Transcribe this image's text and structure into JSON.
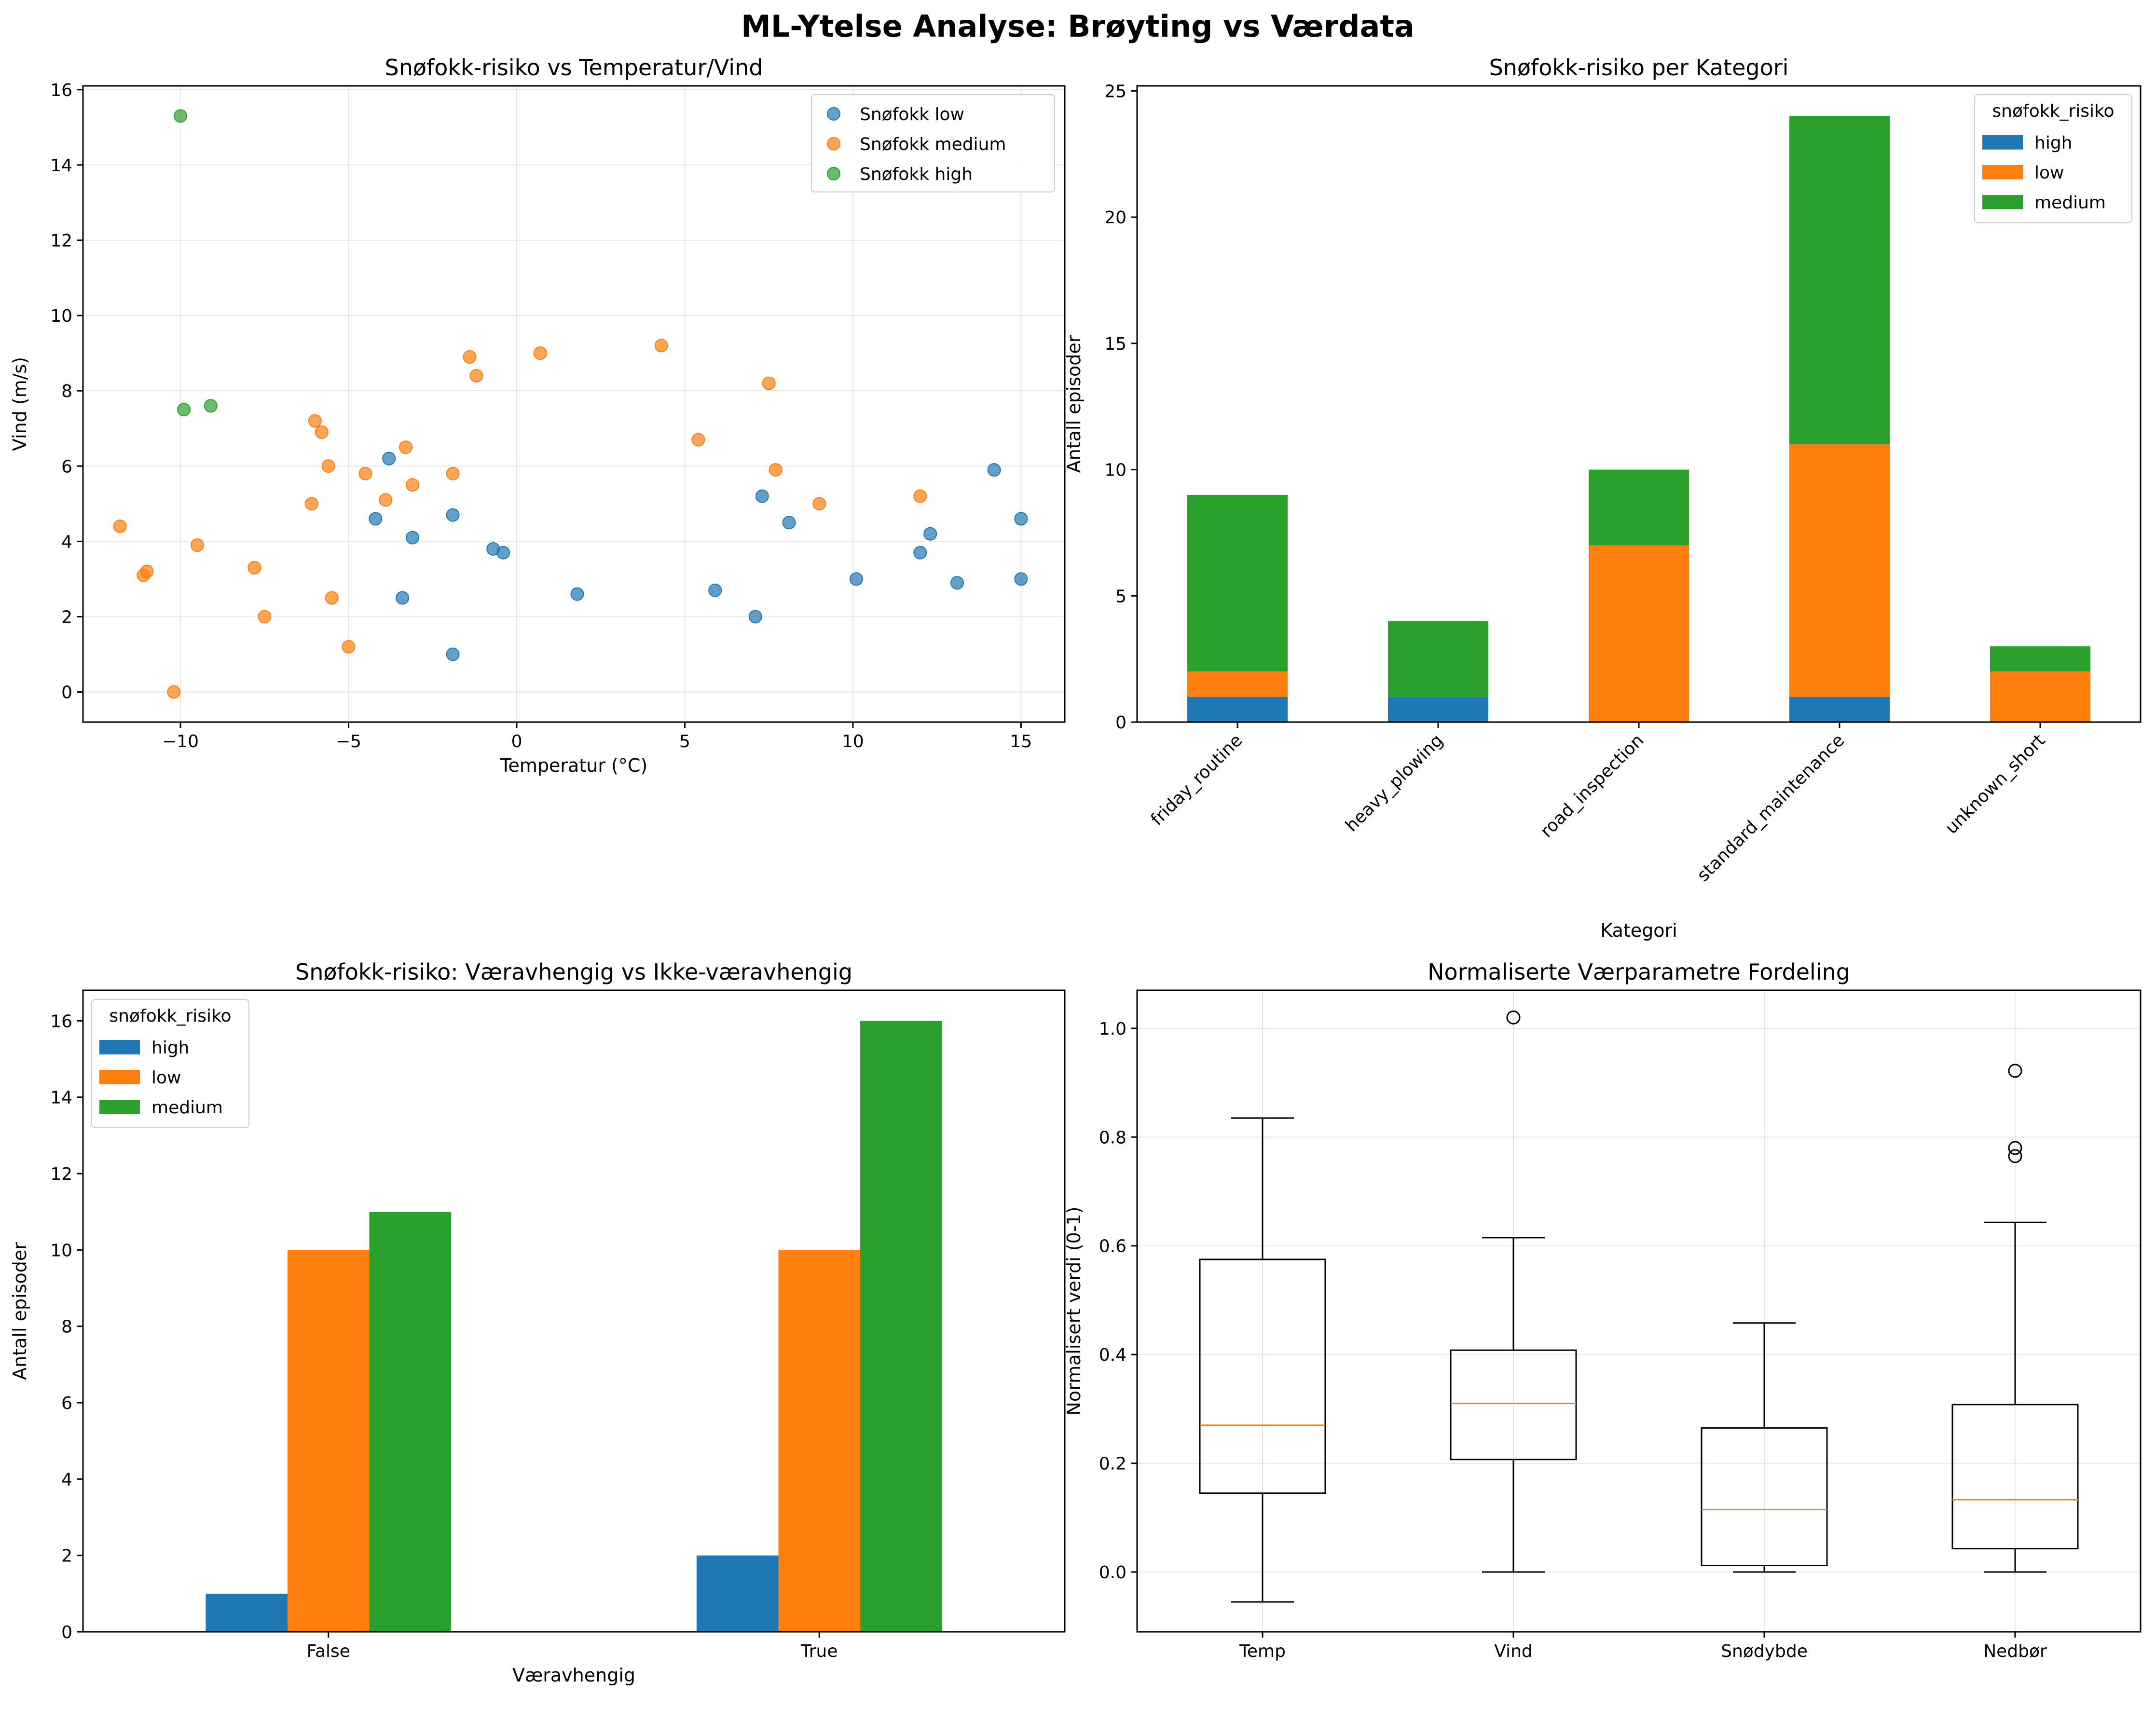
{
  "suptitle": "ML-Ytelse Analyse: Brøyting vs Værdata",
  "colors": {
    "blue": "#1f77b4",
    "orange": "#ff7f0e",
    "green": "#2ca02c"
  },
  "chart_data": [
    {
      "type": "scatter",
      "title": "Snøfokk-risiko vs Temperatur/Vind",
      "xlabel": "Temperatur (°C)",
      "ylabel": "Vind (m/s)",
      "xlim": [
        -12.9,
        16.3
      ],
      "ylim": [
        -0.8,
        16.1
      ],
      "xticks": [
        -10,
        -5,
        0,
        5,
        10,
        15
      ],
      "yticks": [
        0,
        2,
        4,
        6,
        8,
        10,
        12,
        14,
        16
      ],
      "grid": true,
      "legend_position": "top-right",
      "series": [
        {
          "name": "Snøfokk low",
          "color": "#1f77b4",
          "points": [
            [
              -4.2,
              4.6
            ],
            [
              -3.8,
              6.2
            ],
            [
              -3.4,
              2.5
            ],
            [
              -3.1,
              4.1
            ],
            [
              -1.9,
              4.7
            ],
            [
              -1.9,
              1.0
            ],
            [
              -0.7,
              3.8
            ],
            [
              -0.4,
              3.7
            ],
            [
              1.8,
              2.6
            ],
            [
              5.9,
              2.7
            ],
            [
              7.1,
              2.0
            ],
            [
              7.3,
              5.2
            ],
            [
              8.1,
              4.5
            ],
            [
              10.1,
              3.0
            ],
            [
              12.0,
              3.7
            ],
            [
              12.3,
              4.2
            ],
            [
              13.1,
              2.9
            ],
            [
              14.2,
              5.9
            ],
            [
              15.0,
              4.6
            ],
            [
              15.0,
              3.0
            ]
          ]
        },
        {
          "name": "Snøfokk medium",
          "color": "#ff7f0e",
          "points": [
            [
              -11.8,
              4.4
            ],
            [
              -11.1,
              3.1
            ],
            [
              -11.0,
              3.2
            ],
            [
              -10.2,
              0.0
            ],
            [
              -9.5,
              3.9
            ],
            [
              -7.8,
              3.3
            ],
            [
              -7.5,
              2.0
            ],
            [
              -6.1,
              5.0
            ],
            [
              -6.0,
              7.2
            ],
            [
              -5.8,
              6.9
            ],
            [
              -5.6,
              6.0
            ],
            [
              -5.5,
              2.5
            ],
            [
              -5.0,
              1.2
            ],
            [
              -4.5,
              5.8
            ],
            [
              -3.9,
              5.1
            ],
            [
              -3.3,
              6.5
            ],
            [
              -3.1,
              5.5
            ],
            [
              -1.9,
              5.8
            ],
            [
              -1.4,
              8.9
            ],
            [
              -1.2,
              8.4
            ],
            [
              0.7,
              9.0
            ],
            [
              4.3,
              9.2
            ],
            [
              5.4,
              6.7
            ],
            [
              7.5,
              8.2
            ],
            [
              7.7,
              5.9
            ],
            [
              9.0,
              5.0
            ],
            [
              12.0,
              5.2
            ]
          ]
        },
        {
          "name": "Snøfokk high",
          "color": "#2ca02c",
          "points": [
            [
              -10.0,
              15.3
            ],
            [
              -9.9,
              7.5
            ],
            [
              -9.1,
              7.6
            ]
          ]
        }
      ]
    },
    {
      "type": "bar",
      "stacked": true,
      "title": "Snøfokk-risiko per Kategori",
      "xlabel": "Kategori",
      "ylabel": "Antall episoder",
      "ylim": [
        0,
        25.2
      ],
      "yticks": [
        0,
        5,
        10,
        15,
        20,
        25
      ],
      "legend_title": "snøfokk_risiko",
      "legend_position": "top-right",
      "categories": [
        "friday_routine",
        "heavy_plowing",
        "road_inspection",
        "standard_maintenance",
        "unknown_short"
      ],
      "series": [
        {
          "name": "high",
          "color": "#1f77b4",
          "values": [
            1,
            1,
            0,
            1,
            0
          ]
        },
        {
          "name": "low",
          "color": "#ff7f0e",
          "values": [
            1,
            0,
            7,
            10,
            2
          ]
        },
        {
          "name": "medium",
          "color": "#2ca02c",
          "values": [
            7,
            3,
            3,
            13,
            1
          ]
        }
      ]
    },
    {
      "type": "bar",
      "stacked": false,
      "title": "Snøfokk-risiko: Væravhengig vs Ikke-væravhengig",
      "xlabel": "Væravhengig",
      "ylabel": "Antall episoder",
      "ylim": [
        0,
        16.8
      ],
      "yticks": [
        0,
        2,
        4,
        6,
        8,
        10,
        12,
        14,
        16
      ],
      "legend_title": "snøfokk_risiko",
      "legend_position": "top-left",
      "categories": [
        "False",
        "True"
      ],
      "series": [
        {
          "name": "high",
          "color": "#1f77b4",
          "values": [
            1,
            2
          ]
        },
        {
          "name": "low",
          "color": "#ff7f0e",
          "values": [
            10,
            10
          ]
        },
        {
          "name": "medium",
          "color": "#2ca02c",
          "values": [
            11,
            16
          ]
        }
      ]
    },
    {
      "type": "box",
      "title": "Normaliserte Værparametre Fordeling",
      "xlabel": "",
      "ylabel": "Normalisert verdi (0-1)",
      "ylim": [
        -0.11,
        1.07
      ],
      "yticks": [
        "0.0",
        "0.2",
        "0.4",
        "0.6",
        "0.8",
        "1.0"
      ],
      "grid": true,
      "categories": [
        "Temp",
        "Vind",
        "Snødybde",
        "Nedbør"
      ],
      "boxes": [
        {
          "whislo": -0.055,
          "q1": 0.145,
          "med": 0.27,
          "q3": 0.575,
          "whishi": 0.835,
          "fliers": []
        },
        {
          "whislo": 0.0,
          "q1": 0.207,
          "med": 0.31,
          "q3": 0.408,
          "whishi": 0.615,
          "fliers": [
            1.02
          ]
        },
        {
          "whislo": 0.0,
          "q1": 0.012,
          "med": 0.115,
          "q3": 0.265,
          "whishi": 0.458,
          "fliers": []
        },
        {
          "whislo": 0.0,
          "q1": 0.043,
          "med": 0.133,
          "q3": 0.308,
          "whishi": 0.643,
          "fliers": [
            0.765,
            0.78,
            0.922
          ]
        }
      ]
    }
  ]
}
